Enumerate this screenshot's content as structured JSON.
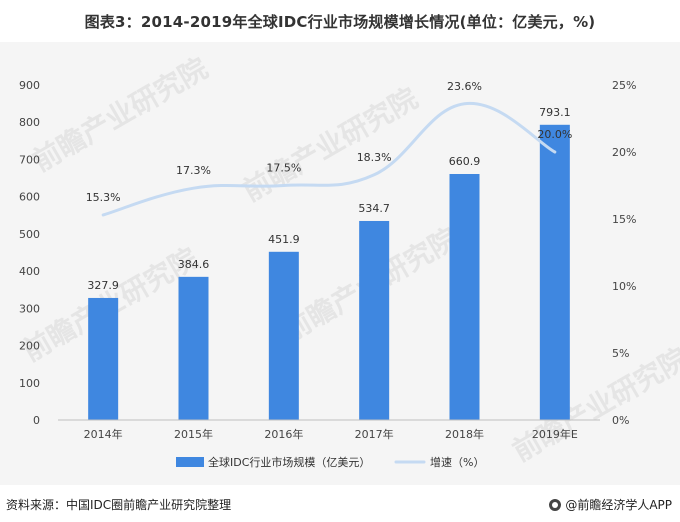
{
  "title": "图表3：2014-2019年全球IDC行业市场规模增长情况(单位：亿美元，%)",
  "source": "资料来源：中国IDC圈前瞻产业研究院整理",
  "brand": "@前瞻经济学人APP",
  "watermark": "前瞻产业研究院",
  "chart_data": {
    "type": "bar",
    "categories": [
      "2014年",
      "2015年",
      "2016年",
      "2017年",
      "2018年",
      "2019年E"
    ],
    "series": [
      {
        "name": "全球IDC行业市场规模（亿美元）",
        "type": "bar",
        "axis": "left",
        "values": [
          327.9,
          384.6,
          451.9,
          534.7,
          660.9,
          793.1
        ],
        "labels": [
          "327.9",
          "384.6",
          "451.9",
          "534.7",
          "660.9",
          "793.1"
        ],
        "color": "#3f87e0"
      },
      {
        "name": "增速（%）",
        "type": "line",
        "axis": "right",
        "values": [
          15.3,
          17.3,
          17.5,
          18.3,
          23.6,
          20.0
        ],
        "labels": [
          "15.3%",
          "17.3%",
          "17.5%",
          "18.3%",
          "23.6%",
          "20.0%"
        ],
        "color": "#c5daf2"
      }
    ],
    "y_left": {
      "ylim": [
        0,
        900
      ],
      "ticks": [
        "0",
        "100",
        "200",
        "300",
        "400",
        "500",
        "600",
        "700",
        "800",
        "900"
      ]
    },
    "y_right": {
      "ylim": [
        0,
        25
      ],
      "ticks": [
        "0%",
        "5%",
        "10%",
        "15%",
        "20%",
        "25%"
      ]
    },
    "legend_position": "bottom",
    "grid": false
  }
}
